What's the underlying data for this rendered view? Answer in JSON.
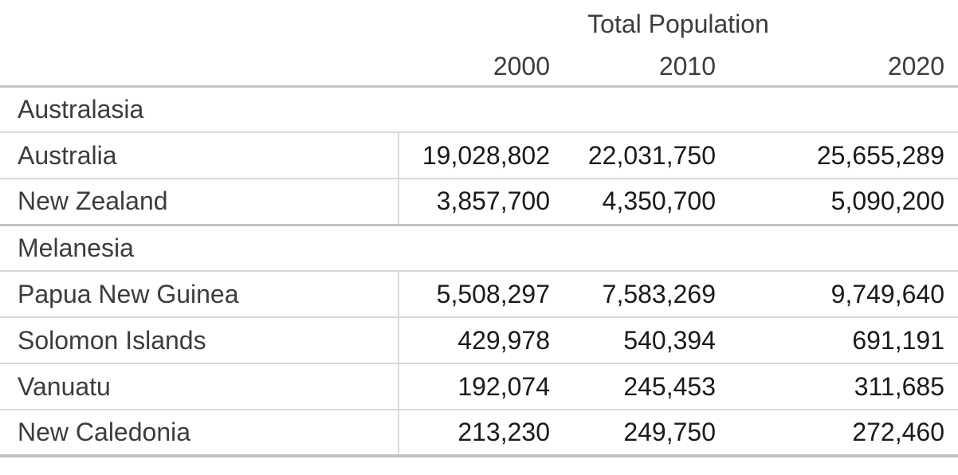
{
  "chart_data": {
    "type": "table",
    "title": "Total Population",
    "columns": [
      "2000",
      "2010",
      "2020"
    ],
    "groups": [
      {
        "group": "Australasia",
        "rows": [
          {
            "name": "Australia",
            "values": [
              19028802,
              22031750,
              25655289
            ],
            "display": [
              "19,028,802",
              "22,031,750",
              "25,655,289"
            ]
          },
          {
            "name": "New Zealand",
            "values": [
              3857700,
              4350700,
              5090200
            ],
            "display": [
              "3,857,700",
              "4,350,700",
              "5,090,200"
            ]
          }
        ]
      },
      {
        "group": "Melanesia",
        "rows": [
          {
            "name": "Papua New Guinea",
            "values": [
              5508297,
              7583269,
              9749640
            ],
            "display": [
              "5,508,297",
              "7,583,269",
              "9,749,640"
            ]
          },
          {
            "name": "Solomon Islands",
            "values": [
              429978,
              540394,
              691191
            ],
            "display": [
              "429,978",
              "540,394",
              "691,191"
            ]
          },
          {
            "name": "Vanuatu",
            "values": [
              192074,
              245453,
              311685
            ],
            "display": [
              "192,074",
              "245,453",
              "311,685"
            ]
          },
          {
            "name": "New Caledonia",
            "values": [
              213230,
              249750,
              272460
            ],
            "display": [
              "213,230",
              "249,750",
              "272,460"
            ]
          }
        ]
      }
    ],
    "layout": {
      "title_position": "centered-over-value-columns",
      "value_alignment": "right",
      "grid": "horizontal-rules-with-single-vertical-divider-after-name-column"
    }
  },
  "colors": {
    "background": "#ffffff",
    "text_labels": "#3c3c3c",
    "text_numbers": "#1a1a1a",
    "border_light": "#d8d8d8",
    "border_heavy": "#c3c3c3"
  }
}
